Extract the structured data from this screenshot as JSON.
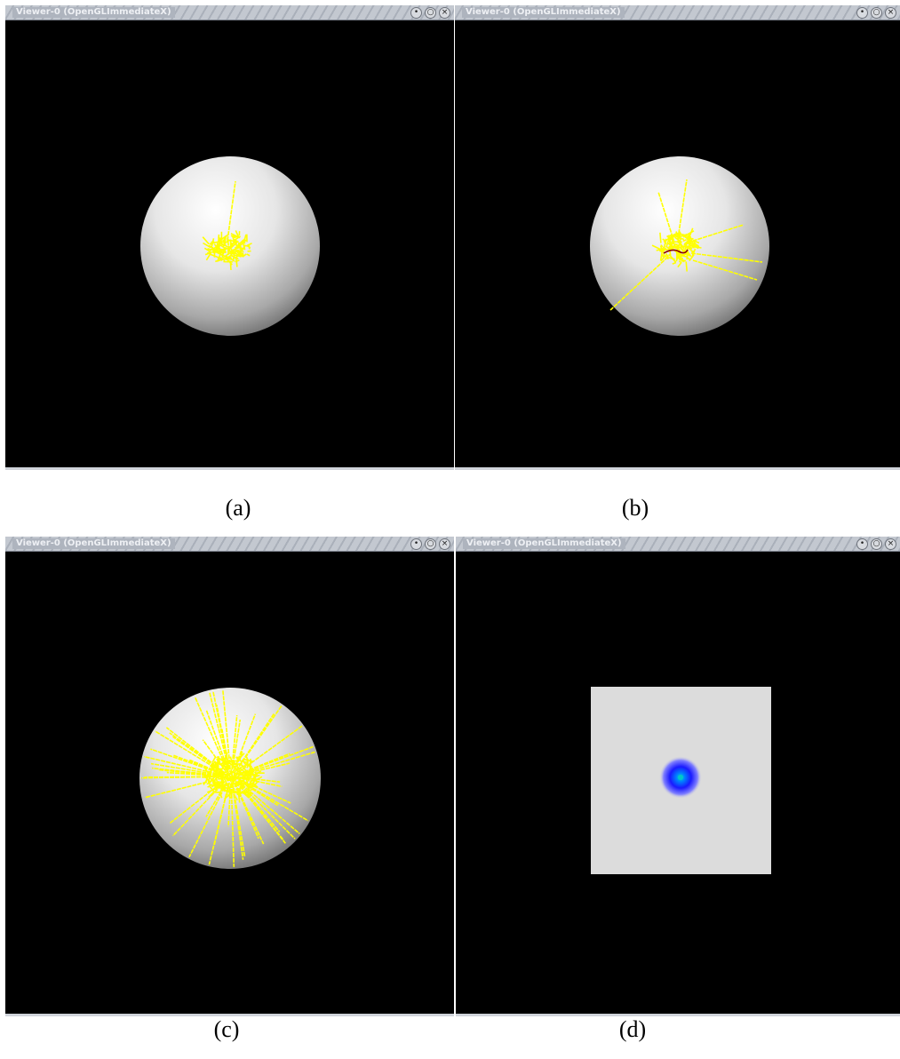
{
  "viewers": [
    {
      "title": "Viewer-0 (OpenGLImmediateX)",
      "caption": "(a)"
    },
    {
      "title": "Viewer-0 (OpenGLImmediateX)",
      "caption": "(b)"
    },
    {
      "title": "Viewer-0 (OpenGLImmediateX)",
      "caption": "(c)"
    },
    {
      "title": "Viewer-0 (OpenGLImmediateX)",
      "caption": "(d)"
    }
  ],
  "window_controls": {
    "minimize_glyph": "•",
    "maximize_glyph": "○",
    "close_glyph": "×"
  },
  "colors": {
    "background": "#000000",
    "sphere_highlight": "#ffffff",
    "sphere_shadow": "#6a6a6a",
    "track": "#ffff00",
    "track_alt": "#8b0000",
    "plane": "#dcdcdc",
    "hotspot_core": "#00c8c8",
    "hotspot_halo": "#1a1aff"
  },
  "icons": {
    "minimize": "minimize-icon",
    "maximize": "maximize-icon",
    "close": "close-icon"
  }
}
